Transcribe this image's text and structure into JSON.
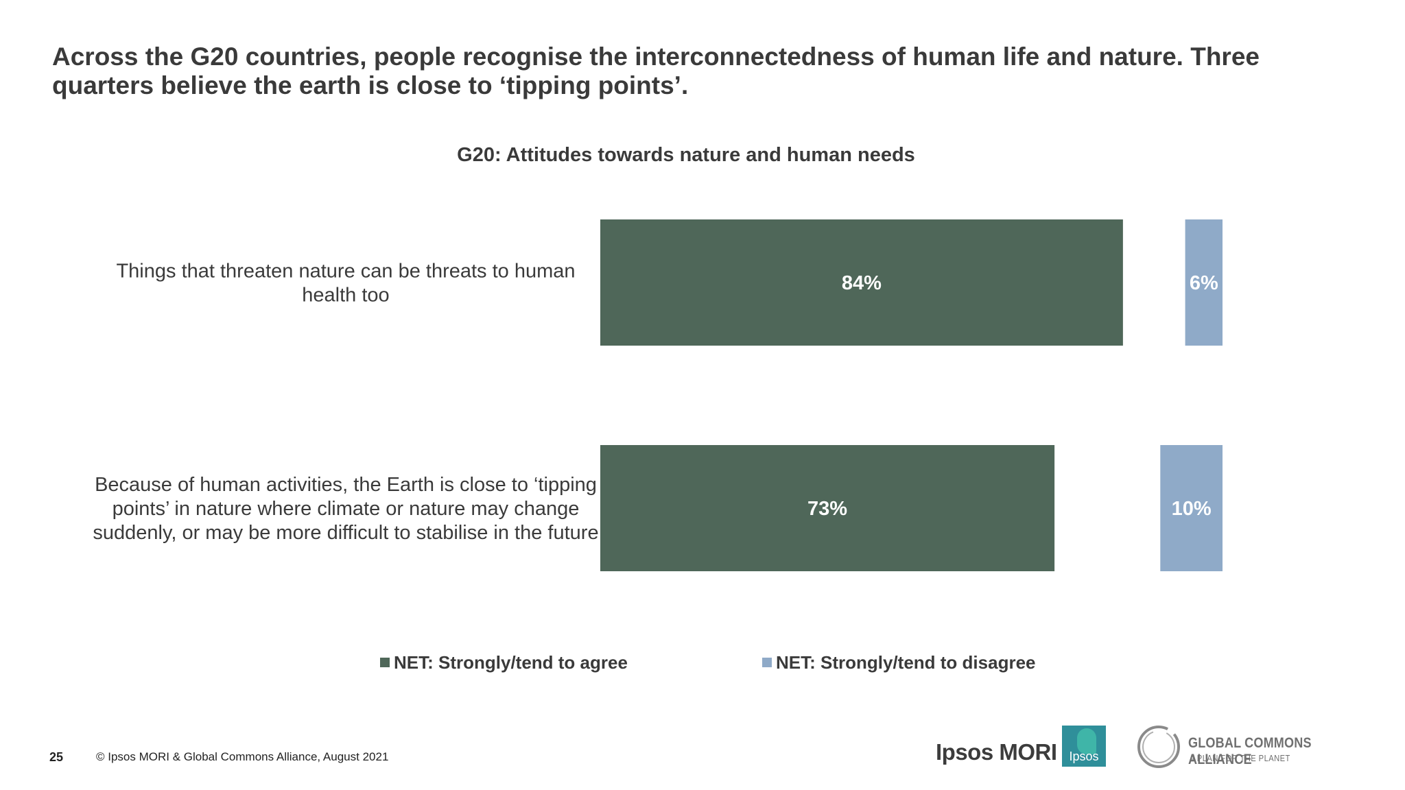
{
  "slide": {
    "title": "Across the G20 countries, people recognise the interconnectedness of human life and nature. Three quarters believe the earth is close to ‘tipping points’.",
    "page_number": "25",
    "copyright": "© Ipsos MORI & Global Commons Alliance, August 2021"
  },
  "logos": {
    "ipsos_mori": "Ipsos MORI",
    "ipsos": "Ipsos",
    "gca_name": "GLOBAL COMMONS ALLIANCE",
    "gca_tagline": "A PLAN FOR THE PLANET"
  },
  "chart_data": {
    "type": "bar",
    "orientation": "horizontal",
    "title": "G20: Attitudes towards nature and human needs",
    "categories": [
      "Things that threaten nature can be threats to human health too",
      "Because of human activities, the Earth is close to ‘tipping points’ in nature where climate or nature may change suddenly, or may be more difficult to stabilise in the future"
    ],
    "category_lines": [
      [
        "Things that threaten nature can be threats to human",
        "health too"
      ],
      [
        "Because of human activities, the Earth is close to ‘tipping",
        "points’ in nature where climate or nature may change",
        "suddenly, or may be more difficult to stabilise in the future"
      ]
    ],
    "series": [
      {
        "name": "NET: Strongly/tend to agree",
        "values": [
          84,
          73
        ],
        "labels": [
          "84%",
          "73%"
        ],
        "color": "#4f6759"
      },
      {
        "name": "NET: Strongly/tend to disagree",
        "values": [
          6,
          10
        ],
        "labels": [
          "6%",
          "10%"
        ],
        "color": "#8faac8"
      }
    ],
    "unit": "%",
    "xlim": [
      0,
      100
    ],
    "grid": false,
    "legend_position": "bottom"
  }
}
